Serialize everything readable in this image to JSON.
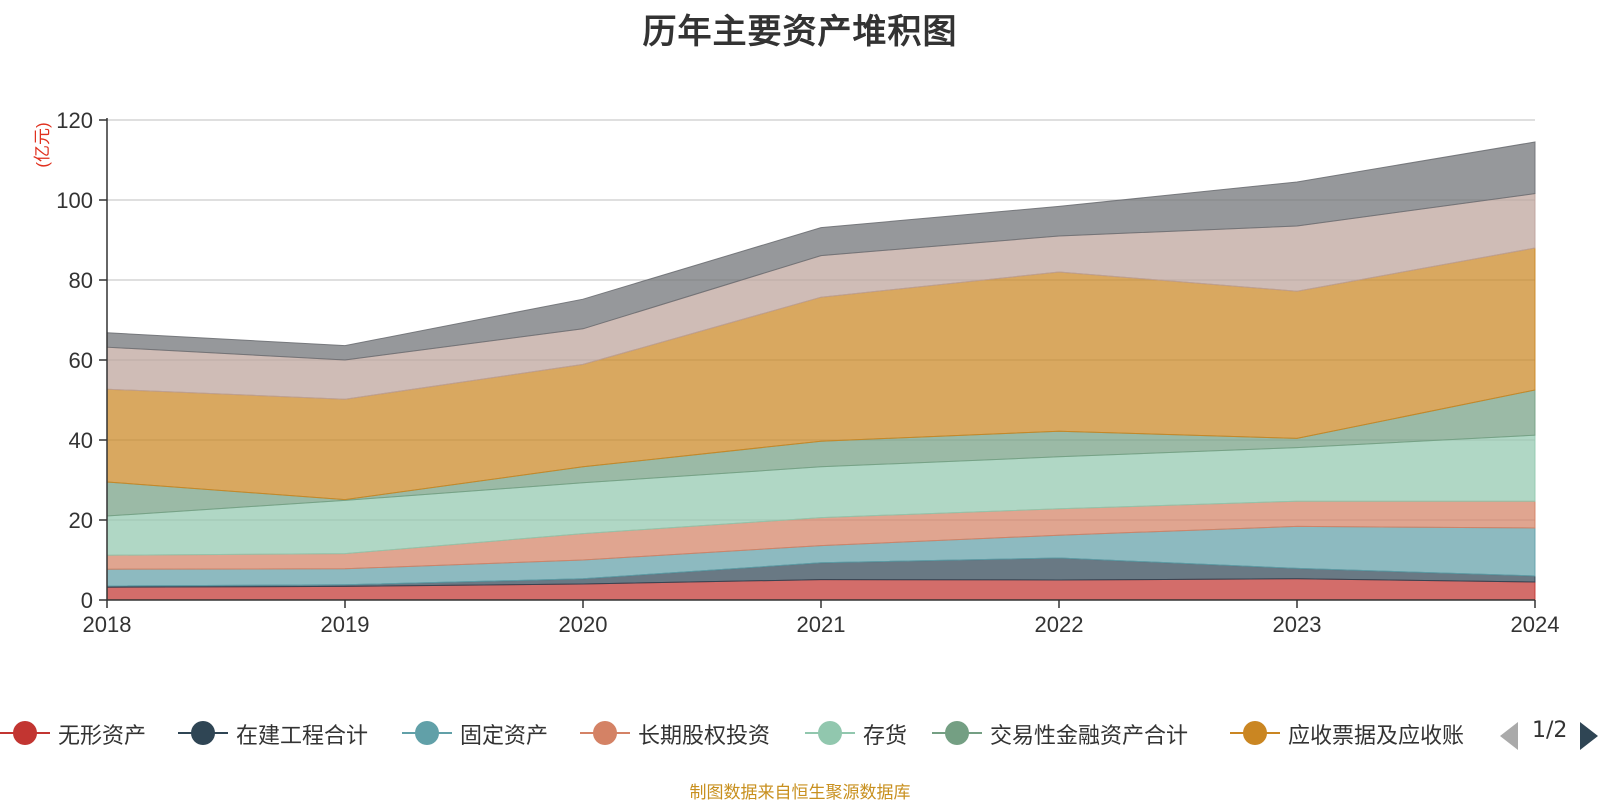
{
  "title": "历年主要资产堆积图",
  "unit_label": "(亿元)",
  "footer": "制图数据来自恒生聚源数据库",
  "legend_pager": "1/2",
  "chart_data": {
    "type": "area",
    "stacked": true,
    "x": [
      "2018",
      "2019",
      "2020",
      "2021",
      "2022",
      "2023",
      "2024"
    ],
    "ylim": [
      0,
      120
    ],
    "yticks": [
      "0",
      "20",
      "40",
      "60",
      "80",
      "100",
      "120"
    ],
    "grid": true,
    "series": [
      {
        "name": "无形资产",
        "color": "#c23531",
        "values": [
          3.2,
          3.4,
          4.0,
          5.1,
          5.0,
          5.3,
          4.5
        ]
      },
      {
        "name": "在建工程合计",
        "color": "#2f4554",
        "values": [
          0.3,
          0.4,
          1.3,
          4.2,
          5.5,
          2.6,
          1.5
        ]
      },
      {
        "name": "固定资产",
        "color": "#61a0a8",
        "values": [
          4.2,
          4.0,
          4.7,
          4.3,
          5.7,
          10.5,
          12.0
        ]
      },
      {
        "name": "长期股权投资",
        "color": "#d48265",
        "values": [
          3.5,
          3.8,
          6.6,
          7.0,
          6.6,
          6.3,
          6.7
        ]
      },
      {
        "name": "存货",
        "color": "#91c7ae",
        "values": [
          9.8,
          13.3,
          12.7,
          12.7,
          13.0,
          13.4,
          16.5
        ]
      },
      {
        "name": "交易性金融资产合计",
        "color": "#749f83",
        "values": [
          8.5,
          0.2,
          4.0,
          6.4,
          6.4,
          2.3,
          11.3
        ]
      },
      {
        "name": "应收票据及应收账",
        "color": "#ca8622",
        "values": [
          23.2,
          25.1,
          25.6,
          36.0,
          39.8,
          36.8,
          35.5
        ]
      },
      {
        "name": "",
        "color": "#bda29a",
        "values": [
          10.5,
          9.8,
          8.9,
          10.4,
          9.0,
          16.3,
          13.6
        ]
      },
      {
        "name": "",
        "color": "#6e7074",
        "values": [
          3.6,
          3.6,
          7.4,
          7.0,
          7.4,
          11.0,
          12.9
        ]
      }
    ]
  }
}
